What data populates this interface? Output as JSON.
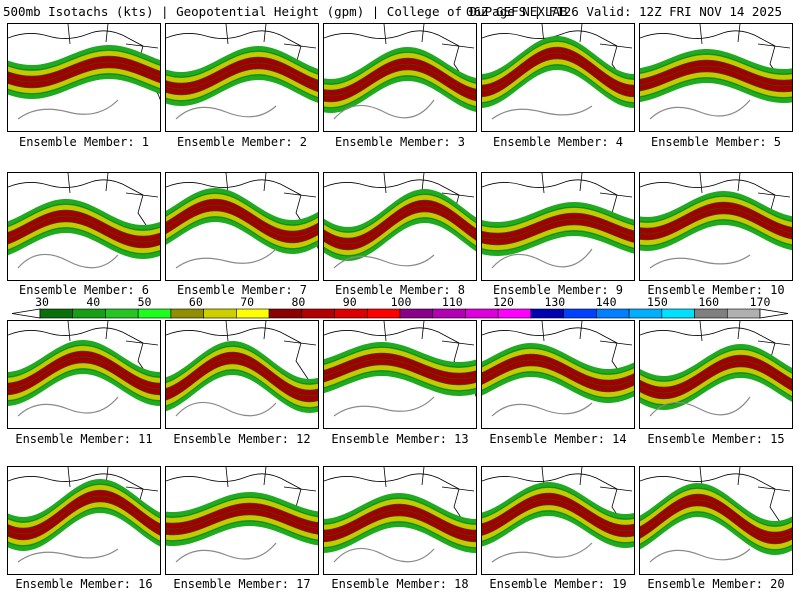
{
  "title": {
    "left": "500mb Isotachs (kts) | Geopotential Height (gpm) | College of DuPage NEXLAB",
    "right": "06Z GEFS | F126 Valid: 12Z FRI NOV 14 2025"
  },
  "members": [
    {
      "label": "Ensemble Member: 1"
    },
    {
      "label": "Ensemble Member: 2"
    },
    {
      "label": "Ensemble Member: 3"
    },
    {
      "label": "Ensemble Member: 4"
    },
    {
      "label": "Ensemble Member: 5"
    },
    {
      "label": "Ensemble Member: 6"
    },
    {
      "label": "Ensemble Member: 7"
    },
    {
      "label": "Ensemble Member: 8"
    },
    {
      "label": "Ensemble Member: 9"
    },
    {
      "label": "Ensemble Member: 10"
    },
    {
      "label": "Ensemble Member: 11"
    },
    {
      "label": "Ensemble Member: 12"
    },
    {
      "label": "Ensemble Member: 13"
    },
    {
      "label": "Ensemble Member: 14"
    },
    {
      "label": "Ensemble Member: 15"
    },
    {
      "label": "Ensemble Member: 16"
    },
    {
      "label": "Ensemble Member: 17"
    },
    {
      "label": "Ensemble Member: 18"
    },
    {
      "label": "Ensemble Member: 19"
    },
    {
      "label": "Ensemble Member: 20"
    }
  ],
  "colorbar": {
    "tick_labels": [
      "30",
      "40",
      "50",
      "60",
      "70",
      "80",
      "90",
      "100",
      "110",
      "120",
      "130",
      "140",
      "150",
      "160",
      "170"
    ],
    "colors": [
      "#0a6e0a",
      "#16a016",
      "#26c526",
      "#1cff1c",
      "#8f8f00",
      "#cfcf00",
      "#ffff00",
      "#8b0000",
      "#b30000",
      "#dd0000",
      "#ff0000",
      "#8b008b",
      "#b300b3",
      "#dd00dd",
      "#ff00ff",
      "#0000b3",
      "#0040ff",
      "#0080ff",
      "#00b0ff",
      "#00e0ff",
      "#808080",
      "#b0b0b0"
    ]
  },
  "legend": {
    "field_colors": {
      "jet_core": "#a00000",
      "jet_edge": "#c8c800",
      "jet_outer": "#1faa1f",
      "height_contour": "#8a8a8a",
      "land_outline": "#000000"
    }
  }
}
